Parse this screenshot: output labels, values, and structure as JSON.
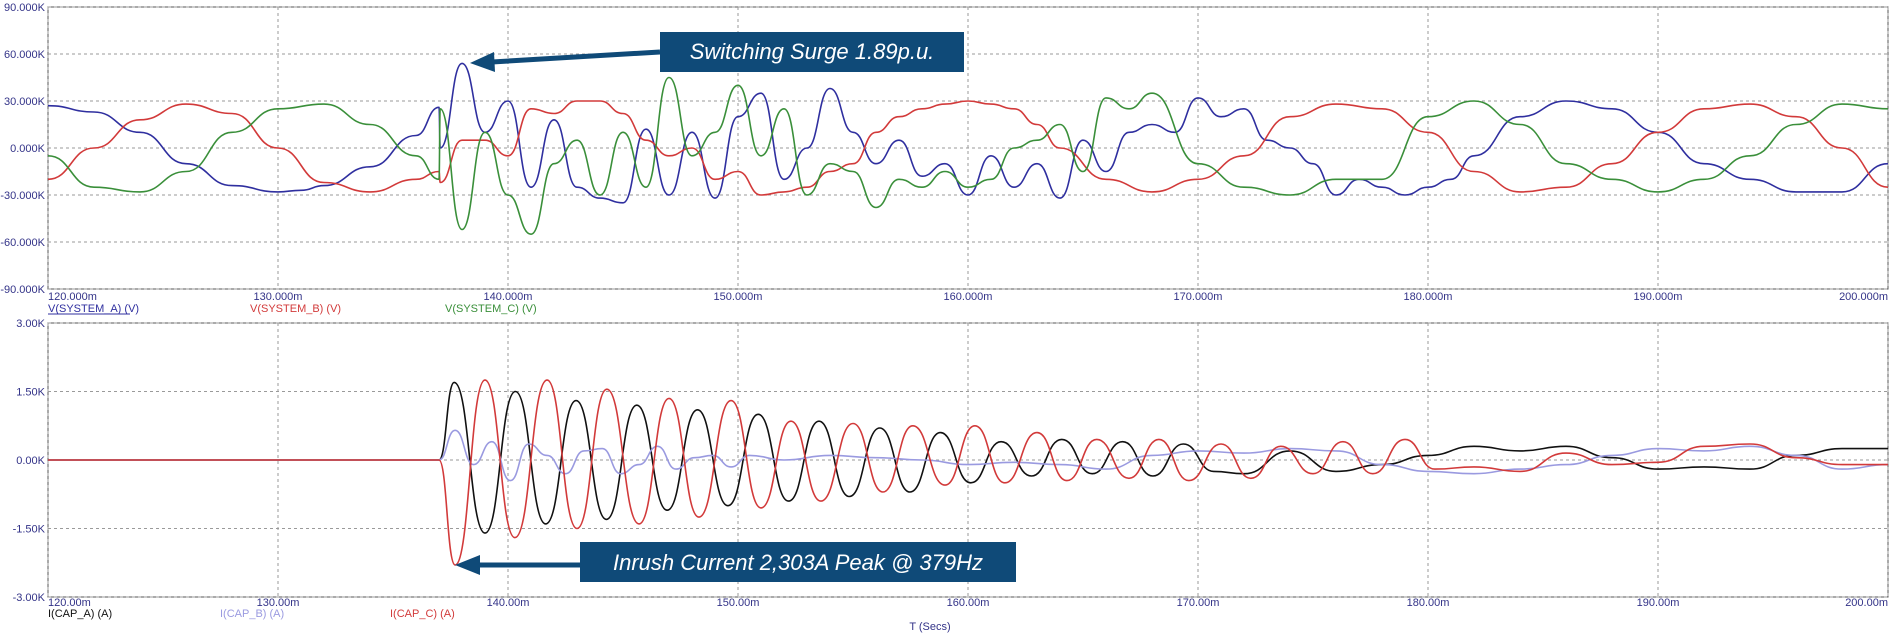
{
  "chart_data": [
    {
      "type": "line",
      "x_range": [
        120,
        200
      ],
      "ylim": [
        -90,
        90
      ],
      "x_ticks": [
        120,
        130,
        140,
        150,
        160,
        170,
        180,
        190,
        200
      ],
      "x_tick_labels": [
        "120.000m",
        "130.000m",
        "140.000m",
        "150.000m",
        "160.000m",
        "170.000m",
        "180.000m",
        "190.000m",
        "200.000m"
      ],
      "y_ticks": [
        -90,
        -60,
        -30,
        0,
        30,
        60,
        90
      ],
      "y_tick_labels": [
        "-90.000K",
        "-60.000K",
        "-30.000K",
        "0.000K",
        "30.000K",
        "60.000K",
        "90.000K"
      ],
      "grid": true,
      "legend_position": "bottom-left",
      "series": [
        {
          "name": "V(SYSTEM_A) (V)",
          "color": "#2f2f9f",
          "x": [
            120,
            122,
            124,
            126,
            128,
            130,
            131,
            132,
            134,
            136,
            137,
            137.05,
            138,
            139,
            140,
            141,
            142,
            143,
            144,
            145,
            146,
            147,
            148,
            149,
            150,
            151,
            152,
            153,
            154,
            155,
            156,
            157,
            158,
            159,
            160,
            161,
            162,
            163,
            164,
            165,
            166,
            167,
            168,
            169,
            170,
            171,
            172,
            173,
            174,
            175,
            176,
            177,
            178,
            179,
            180,
            181,
            182,
            184,
            186,
            188,
            190,
            192,
            194,
            196,
            198,
            200
          ],
          "y": [
            27,
            23,
            10,
            -10,
            -24,
            -28,
            -27,
            -24,
            -12,
            8,
            26,
            0,
            54,
            10,
            30,
            -25,
            18,
            -25,
            -32,
            -35,
            12,
            -30,
            10,
            -32,
            20,
            35,
            -20,
            0,
            38,
            10,
            -10,
            5,
            -18,
            -10,
            -30,
            -5,
            -25,
            -10,
            -32,
            5,
            -15,
            10,
            15,
            10,
            32,
            20,
            25,
            5,
            0,
            -10,
            -30,
            -20,
            -25,
            -30,
            -25,
            -20,
            -5,
            20,
            30,
            25,
            10,
            -10,
            -20,
            -28,
            -28,
            -10
          ],
          "peak_label": "Switching Surge 1.89p.u."
        },
        {
          "name": "V(SYSTEM_B) (V)",
          "color": "#d23a3a",
          "x": [
            120,
            122,
            124,
            126,
            128,
            130,
            132,
            134,
            136,
            137,
            137.05,
            138,
            139,
            140,
            141,
            142,
            143,
            144,
            145,
            146,
            147,
            148,
            149,
            150,
            151,
            152,
            153,
            154,
            155,
            156,
            157,
            158,
            159,
            160,
            161,
            162,
            163,
            164,
            166,
            168,
            170,
            172,
            174,
            176,
            178,
            180,
            182,
            184,
            186,
            188,
            190,
            192,
            194,
            196,
            198,
            200
          ],
          "y": [
            -20,
            0,
            18,
            28,
            22,
            0,
            -22,
            -28,
            -20,
            -15,
            -22,
            5,
            5,
            -5,
            25,
            22,
            30,
            30,
            22,
            5,
            -5,
            0,
            -20,
            -15,
            -30,
            -28,
            -25,
            -15,
            -10,
            10,
            20,
            25,
            28,
            30,
            28,
            25,
            15,
            0,
            -20,
            -28,
            -20,
            -5,
            20,
            28,
            25,
            10,
            -15,
            -28,
            -25,
            -10,
            10,
            25,
            28,
            20,
            0,
            -25
          ],
          "peak_label": ""
        },
        {
          "name": "V(SYSTEM_C) (V)",
          "color": "#3a8f3a",
          "x": [
            120,
            122,
            124,
            126,
            128,
            130,
            132,
            134,
            136,
            137,
            137.05,
            138,
            139,
            140,
            141,
            142,
            143,
            144,
            145,
            146,
            147,
            148,
            149,
            150,
            151,
            152,
            153,
            154,
            155,
            156,
            157,
            158,
            159,
            160,
            161,
            162,
            163,
            164,
            165,
            166,
            167,
            168,
            170,
            172,
            174,
            176,
            178,
            180,
            182,
            184,
            186,
            188,
            190,
            192,
            194,
            196,
            198,
            200
          ],
          "y": [
            -5,
            -25,
            -28,
            -15,
            10,
            25,
            28,
            15,
            -5,
            -20,
            25,
            -52,
            10,
            -30,
            -55,
            -10,
            5,
            -30,
            10,
            -25,
            45,
            -5,
            10,
            40,
            -5,
            25,
            -30,
            -10,
            -15,
            -38,
            -20,
            -25,
            -15,
            -25,
            -20,
            0,
            5,
            15,
            -15,
            32,
            25,
            35,
            -10,
            -25,
            -30,
            -20,
            -20,
            20,
            30,
            15,
            -10,
            -20,
            -28,
            -20,
            -5,
            15,
            28,
            25
          ]
        }
      ]
    },
    {
      "type": "line",
      "x_range": [
        120,
        200
      ],
      "ylim": [
        -3,
        3
      ],
      "x_ticks": [
        120,
        130,
        140,
        150,
        160,
        170,
        180,
        190,
        200
      ],
      "x_tick_labels": [
        "120.00m",
        "130.00m",
        "140.00m",
        "150.00m",
        "160.00m",
        "170.00m",
        "180.00m",
        "190.00m",
        "200.00m"
      ],
      "y_ticks": [
        -3,
        -1.5,
        0,
        1.5,
        3
      ],
      "y_tick_labels": [
        "-3.00K",
        "-1.50K",
        "0.00K",
        "1.50K",
        "3.00K"
      ],
      "xlabel": "T (Secs)",
      "grid": true,
      "legend_position": "bottom-left",
      "series": [
        {
          "name": "I(CAP_A) (A)",
          "color": "#111111",
          "start": 137,
          "freq_cycles_per_unit": 0.379,
          "x": [
            120,
            137,
            137.66,
            139,
            140.32,
            141.64,
            142.96,
            144.28,
            145.6,
            146.92,
            148.24,
            149.56,
            150.88,
            152.2,
            153.52,
            154.84,
            156.16,
            157.48,
            158.8,
            160.12,
            161.44,
            162.76,
            164.08,
            165.4,
            166.72,
            168.04,
            169.36,
            170.68,
            172,
            174,
            176,
            178,
            180,
            182,
            184,
            186,
            188,
            190,
            192,
            194,
            196,
            198,
            200
          ],
          "y": [
            0,
            0,
            1.7,
            -1.6,
            1.5,
            -1.4,
            1.3,
            -1.3,
            1.2,
            -1.1,
            1.1,
            -1.0,
            1.0,
            -0.9,
            0.85,
            -0.8,
            0.7,
            -0.7,
            0.6,
            -0.5,
            0.4,
            -0.35,
            0.45,
            -0.3,
            0.4,
            -0.35,
            0.35,
            -0.25,
            -0.3,
            0.2,
            -0.25,
            -0.1,
            0.1,
            0.3,
            0.2,
            0.3,
            0.05,
            -0.2,
            -0.15,
            -0.2,
            0.1,
            0.25,
            0.25
          ]
        },
        {
          "name": "I(CAP_B) (A)",
          "color": "#9a9ae0",
          "x": [
            120,
            137,
            137.7,
            138.5,
            139.3,
            140.1,
            140.9,
            141.7,
            142.5,
            143.3,
            144.1,
            144.9,
            145.7,
            146.5,
            147.3,
            148.1,
            148.9,
            149.7,
            150.5,
            152,
            154,
            156,
            158,
            160,
            162,
            164,
            166,
            168,
            170,
            172,
            174,
            176,
            178,
            180,
            182,
            184,
            186,
            188,
            190,
            192,
            194,
            196,
            198,
            200
          ],
          "y": [
            0,
            0,
            0.65,
            -0.1,
            0.4,
            -0.45,
            0.35,
            0.1,
            -0.3,
            0.2,
            0.25,
            -0.3,
            -0.1,
            0.3,
            -0.2,
            0.05,
            0.1,
            -0.15,
            0.1,
            0.0,
            0.1,
            0.05,
            0.0,
            -0.1,
            -0.05,
            -0.1,
            -0.2,
            0.1,
            0.2,
            0.15,
            0.25,
            0.2,
            -0.1,
            -0.25,
            -0.3,
            -0.2,
            -0.1,
            0.1,
            0.25,
            0.2,
            0.3,
            0.1,
            -0.2,
            -0.1
          ]
        },
        {
          "name": "I(CAP_C) (A)",
          "color": "#d23a3a",
          "x": [
            120,
            137,
            137.7,
            139,
            140.3,
            141.7,
            143,
            144.3,
            145.7,
            147,
            148.3,
            149.7,
            151,
            152.3,
            153.6,
            155,
            156.3,
            157.6,
            159,
            160.3,
            161.6,
            163,
            164.3,
            165.6,
            167,
            168.3,
            169.6,
            171,
            172.3,
            173.6,
            175,
            176.3,
            177.6,
            179,
            180.3,
            182,
            184,
            186,
            188,
            190,
            192,
            194,
            196,
            198,
            200
          ],
          "y": [
            0,
            0,
            -2.3,
            1.75,
            -1.7,
            1.75,
            -1.5,
            1.55,
            -1.4,
            1.35,
            -1.25,
            1.3,
            -1.05,
            0.85,
            -0.9,
            0.8,
            -0.7,
            0.75,
            -0.55,
            0.75,
            -0.5,
            0.6,
            -0.45,
            0.45,
            -0.4,
            0.45,
            -0.45,
            0.35,
            -0.4,
            0.3,
            -0.3,
            0.4,
            -0.3,
            0.45,
            -0.2,
            -0.15,
            -0.25,
            0.15,
            -0.1,
            -0.05,
            0.3,
            0.35,
            0.05,
            -0.1,
            -0.1
          ],
          "peak_label": "Inrush Current 2,303A Peak @ 379Hz"
        }
      ]
    }
  ],
  "callouts": {
    "upper": "Switching Surge 1.89p.u.",
    "lower": "Inrush Current 2,303A Peak @ 379Hz"
  },
  "colors": {
    "axis_text": "#333388",
    "grid": "#9a9a9a",
    "callout_bg": "#0f4a78"
  }
}
